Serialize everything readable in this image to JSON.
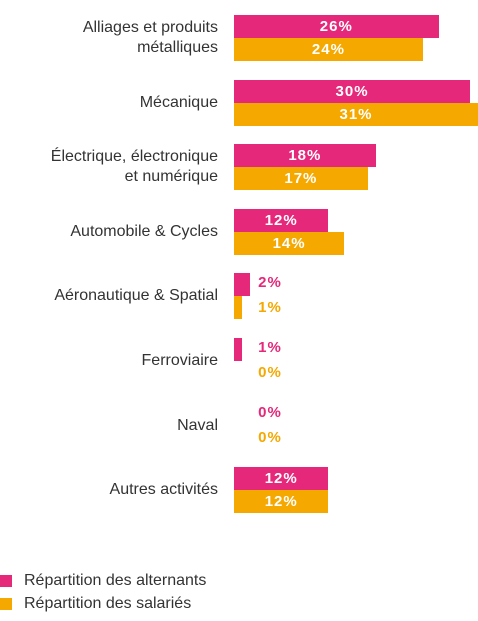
{
  "chart_data": {
    "type": "bar",
    "orientation": "horizontal",
    "categories": [
      "Alliages et produits\nmétalliques",
      "Mécanique",
      "Électrique, électronique\net numérique",
      "Automobile & Cycles",
      "Aéronautique & Spatial",
      "Ferroviaire",
      "Naval",
      "Autres activités"
    ],
    "series": [
      {
        "name": "Répartition des alternants",
        "color": "#e6287a",
        "values": [
          26,
          30,
          18,
          12,
          2,
          1,
          0,
          12
        ],
        "value_labels": [
          "26%",
          "30%",
          "18%",
          "12%",
          "2%",
          "1%",
          "0%",
          "12%"
        ]
      },
      {
        "name": "Répartition des salariés",
        "color": "#f5a800",
        "values": [
          24,
          31,
          17,
          14,
          1,
          0,
          0,
          12
        ],
        "value_labels": [
          "24%",
          "31%",
          "17%",
          "14%",
          "1%",
          "0%",
          "0%",
          "12%"
        ]
      }
    ]
  }
}
